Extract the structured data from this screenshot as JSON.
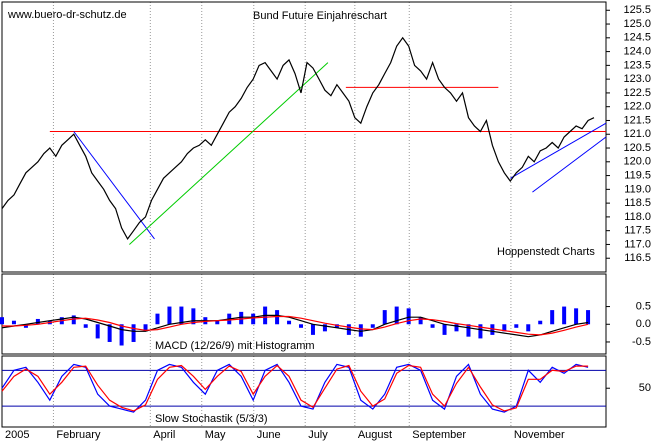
{
  "chart_data": [
    {
      "type": "line",
      "title": "Bund Future Einjahreschart",
      "annotations": [
        "www.buero-dr-schutz.de",
        "Hoppenstedt Charts"
      ],
      "x": [
        0,
        1,
        2,
        3,
        4,
        5,
        6,
        7,
        8,
        9,
        10,
        11,
        12,
        13,
        14,
        15,
        16,
        17,
        18,
        19,
        20,
        21,
        22,
        23,
        24,
        25,
        26,
        27,
        28,
        29,
        30,
        31,
        32,
        33,
        34,
        35,
        36,
        37,
        38,
        39,
        40,
        41,
        42,
        43,
        44,
        45,
        46,
        47,
        48,
        49,
        50,
        51,
        52,
        53,
        54,
        55,
        56,
        57,
        58,
        59,
        60,
        61,
        62,
        63,
        64,
        65,
        66,
        67,
        68,
        69,
        70,
        71,
        72,
        73,
        74,
        75,
        76,
        77,
        78,
        79,
        80,
        81,
        82,
        83,
        84,
        85,
        86,
        87,
        88,
        89,
        90,
        91,
        92,
        93,
        94,
        95,
        96,
        97,
        98,
        99
      ],
      "xlim": [
        0,
        101
      ],
      "xticks": [
        {
          "value": 0,
          "label": "2005"
        },
        {
          "value": 8.6,
          "label": "February"
        },
        {
          "value": 24.8,
          "label": "April"
        },
        {
          "value": 33.4,
          "label": "May"
        },
        {
          "value": 42.1,
          "label": "June"
        },
        {
          "value": 50.7,
          "label": "July"
        },
        {
          "value": 59,
          "label": "August"
        },
        {
          "value": 68.1,
          "label": "September"
        },
        {
          "value": 85.1,
          "label": "November"
        }
      ],
      "series": [
        {
          "color": "#000000",
          "values": [
            118.3,
            118.6,
            118.8,
            119.2,
            119.6,
            119.8,
            120.0,
            120.3,
            120.5,
            120.2,
            120.6,
            120.8,
            121.0,
            120.6,
            120.2,
            119.6,
            119.3,
            119.0,
            118.6,
            118.3,
            117.6,
            117.2,
            117.5,
            117.8,
            118.0,
            118.6,
            119.0,
            119.4,
            119.6,
            119.8,
            120.0,
            120.3,
            120.5,
            120.6,
            120.8,
            120.6,
            121.0,
            121.4,
            121.8,
            122.0,
            122.3,
            122.7,
            123.0,
            123.5,
            123.6,
            123.3,
            123.0,
            123.5,
            123.7,
            123.2,
            122.5,
            123.6,
            123.4,
            123.0,
            122.6,
            122.4,
            122.8,
            122.5,
            122.2,
            121.6,
            121.4,
            122.0,
            122.5,
            122.8,
            123.2,
            123.6,
            124.2,
            124.5,
            124.2,
            123.5,
            123.3,
            123.0,
            123.6,
            123.0,
            122.7,
            122.5,
            122.2,
            122.5,
            121.6,
            121.3,
            121.1,
            121.5,
            120.6,
            120.0,
            119.6,
            119.3,
            119.6,
            119.8,
            120.2,
            120.0,
            120.4,
            120.5,
            120.7,
            120.5,
            120.9,
            121.1,
            121.3,
            121.2,
            121.5,
            121.6
          ]
        }
      ],
      "ylim": [
        116.0,
        125.8
      ],
      "yticks": [
        116.5,
        {
          "value": 117,
          "label": "117.0"
        },
        117.5,
        {
          "value": 118,
          "label": "118.0"
        },
        118.5,
        {
          "value": 119,
          "label": "119.0"
        },
        119.5,
        {
          "value": 120,
          "label": "120.0"
        },
        120.5,
        {
          "value": 121,
          "label": "121.0"
        },
        121.5,
        {
          "value": 122,
          "label": "122.0"
        },
        122.5,
        {
          "value": 123,
          "label": "123.0"
        },
        123.5,
        {
          "value": 124,
          "label": "124.0"
        },
        124.5,
        {
          "value": 125,
          "label": "125.0"
        },
        125.5
      ],
      "lines": [
        {
          "color": "#ff0000",
          "x": [
            8,
            101
          ],
          "y": [
            121.1,
            121.1
          ]
        },
        {
          "color": "#ff0000",
          "x": [
            57.5,
            83
          ],
          "y": [
            122.7,
            122.7
          ]
        },
        {
          "color": "#0000ff",
          "x": [
            12,
            25.5
          ],
          "y": [
            121.1,
            117.2
          ]
        },
        {
          "color": "#00cc00",
          "x": [
            21.3,
            54.5
          ],
          "y": [
            117.0,
            123.6
          ]
        },
        {
          "color": "#0000ff",
          "x": [
            85,
            101
          ],
          "y": [
            119.4,
            121.4
          ]
        },
        {
          "color": "#0000ff",
          "x": [
            88.7,
            101
          ],
          "y": [
            118.9,
            120.9
          ]
        }
      ]
    },
    {
      "type": "macd",
      "title": "MACD (12/26/9) mit Histogramm",
      "x": [
        0,
        2,
        4,
        6,
        8,
        10,
        12,
        14,
        16,
        18,
        20,
        22,
        24,
        26,
        28,
        30,
        32,
        34,
        36,
        38,
        40,
        42,
        44,
        46,
        48,
        50,
        52,
        54,
        56,
        58,
        60,
        62,
        64,
        66,
        68,
        70,
        72,
        74,
        76,
        78,
        80,
        82,
        84,
        86,
        88,
        90,
        92,
        94,
        96,
        98
      ],
      "histogram": {
        "color": "#0000ff",
        "values": [
          0.2,
          0.1,
          -0.1,
          0.15,
          0.1,
          0.2,
          0.25,
          -0.1,
          -0.4,
          -0.5,
          -0.6,
          -0.5,
          -0.2,
          0.3,
          0.5,
          0.5,
          0.45,
          0.2,
          0.1,
          0.3,
          0.35,
          0.3,
          0.5,
          0.4,
          0.1,
          -0.1,
          -0.3,
          -0.2,
          -0.1,
          -0.3,
          -0.35,
          -0.1,
          0.4,
          0.5,
          0.45,
          0.2,
          -0.1,
          -0.3,
          -0.2,
          -0.35,
          -0.4,
          -0.3,
          -0.2,
          -0.1,
          -0.2,
          0.1,
          0.4,
          0.5,
          0.45,
          0.4
        ]
      },
      "series": [
        {
          "color": "#000000",
          "values": [
            -0.1,
            -0.05,
            0,
            0.05,
            0.1,
            0.15,
            0.2,
            0.15,
            0.05,
            -0.05,
            -0.15,
            -0.2,
            -0.2,
            -0.1,
            0,
            0.05,
            0.1,
            0.1,
            0.1,
            0.15,
            0.2,
            0.2,
            0.25,
            0.25,
            0.2,
            0.1,
            0,
            -0.05,
            -0.1,
            -0.15,
            -0.2,
            -0.15,
            0,
            0.1,
            0.2,
            0.2,
            0.1,
            0,
            -0.05,
            -0.1,
            -0.15,
            -0.2,
            -0.25,
            -0.3,
            -0.35,
            -0.3,
            -0.2,
            -0.1,
            0,
            0.05
          ]
        },
        {
          "color": "#ff0000",
          "values": [
            -0.05,
            -0.05,
            -0.03,
            0,
            0.05,
            0.1,
            0.15,
            0.17,
            0.12,
            0.05,
            -0.05,
            -0.12,
            -0.17,
            -0.15,
            -0.08,
            0,
            0.05,
            0.08,
            0.1,
            0.12,
            0.15,
            0.18,
            0.2,
            0.22,
            0.22,
            0.17,
            0.1,
            0.03,
            -0.03,
            -0.08,
            -0.13,
            -0.15,
            -0.08,
            0.02,
            0.1,
            0.15,
            0.13,
            0.08,
            0.02,
            -0.03,
            -0.08,
            -0.13,
            -0.18,
            -0.23,
            -0.28,
            -0.3,
            -0.25,
            -0.17,
            -0.08,
            0
          ]
        }
      ],
      "ylim": [
        -0.84,
        1.42
      ],
      "yticks": [
        0.5,
        {
          "value": 0,
          "label": "0.0"
        },
        -0.5
      ]
    },
    {
      "type": "stoch",
      "title": "Slow Stochastik (5/3/3)",
      "x": [
        0,
        2,
        4,
        6,
        8,
        10,
        12,
        14,
        16,
        18,
        20,
        22,
        24,
        26,
        28,
        30,
        32,
        34,
        36,
        38,
        40,
        42,
        44,
        46,
        48,
        50,
        52,
        54,
        56,
        58,
        60,
        62,
        64,
        66,
        68,
        70,
        72,
        74,
        76,
        78,
        80,
        82,
        84,
        86,
        88,
        90,
        92,
        94,
        96,
        98
      ],
      "series": [
        {
          "color": "#0000ff",
          "values": [
            50,
            80,
            85,
            60,
            30,
            70,
            90,
            85,
            40,
            20,
            15,
            10,
            30,
            80,
            90,
            85,
            60,
            40,
            80,
            90,
            70,
            30,
            80,
            90,
            60,
            20,
            15,
            60,
            90,
            85,
            30,
            15,
            40,
            85,
            90,
            80,
            30,
            15,
            70,
            90,
            40,
            15,
            10,
            20,
            80,
            60,
            85,
            75,
            90,
            85
          ]
        },
        {
          "color": "#ff0000",
          "values": [
            45,
            70,
            82,
            70,
            40,
            60,
            85,
            87,
            55,
            30,
            18,
            12,
            22,
            65,
            85,
            88,
            70,
            48,
            70,
            87,
            78,
            40,
            70,
            88,
            70,
            30,
            18,
            50,
            82,
            88,
            45,
            20,
            32,
            75,
            88,
            85,
            40,
            20,
            58,
            85,
            52,
            22,
            12,
            17,
            65,
            65,
            80,
            78,
            87,
            87
          ]
        }
      ],
      "levels": [
        20,
        80
      ],
      "levels_color": "#0000aa",
      "ylim": [
        -15,
        104
      ],
      "yticks": [
        50
      ]
    }
  ]
}
